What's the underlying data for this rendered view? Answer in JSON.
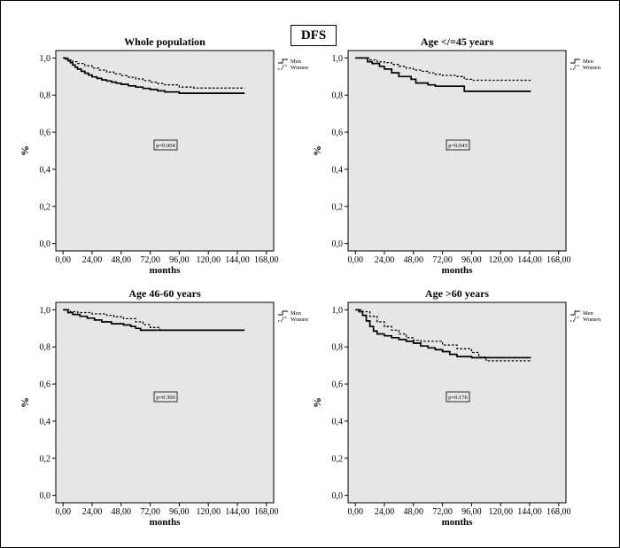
{
  "figure": {
    "title": "DFS"
  },
  "chart_data": [
    {
      "type": "line",
      "title": "Whole population",
      "xlabel": "months",
      "ylabel": "%",
      "xlim": [
        -6,
        174
      ],
      "ylim": [
        -0.04,
        1.04
      ],
      "xticks": [
        "0,00",
        "24,00",
        "48,00",
        "72,00",
        "96,00",
        "120,00",
        "144,00",
        "168,00"
      ],
      "yticks": [
        "0,0",
        "0,2",
        "0,4",
        "0,6",
        "0,8",
        "1,0"
      ],
      "pvalue": "p=0.004",
      "background": "#e6e6e6",
      "legend_position": "top-right",
      "series": [
        {
          "name": "Men",
          "style": "solid",
          "points": [
            [
              0,
              1.0
            ],
            [
              2,
              0.995
            ],
            [
              4,
              0.985
            ],
            [
              6,
              0.975
            ],
            [
              8,
              0.962
            ],
            [
              10,
              0.95
            ],
            [
              12,
              0.94
            ],
            [
              15,
              0.928
            ],
            [
              18,
              0.918
            ],
            [
              21,
              0.908
            ],
            [
              24,
              0.898
            ],
            [
              28,
              0.89
            ],
            [
              32,
              0.882
            ],
            [
              36,
              0.876
            ],
            [
              40,
              0.87
            ],
            [
              44,
              0.864
            ],
            [
              48,
              0.858
            ],
            [
              54,
              0.85
            ],
            [
              60,
              0.843
            ],
            [
              66,
              0.836
            ],
            [
              72,
              0.83
            ],
            [
              78,
              0.823
            ],
            [
              84,
              0.817
            ],
            [
              96,
              0.81
            ],
            [
              150,
              0.81
            ]
          ]
        },
        {
          "name": "Women",
          "style": "dotted",
          "points": [
            [
              0,
              1.0
            ],
            [
              4,
              0.99
            ],
            [
              8,
              0.98
            ],
            [
              12,
              0.97
            ],
            [
              18,
              0.958
            ],
            [
              24,
              0.946
            ],
            [
              30,
              0.935
            ],
            [
              36,
              0.924
            ],
            [
              42,
              0.914
            ],
            [
              48,
              0.905
            ],
            [
              54,
              0.896
            ],
            [
              60,
              0.887
            ],
            [
              66,
              0.878
            ],
            [
              72,
              0.87
            ],
            [
              78,
              0.862
            ],
            [
              84,
              0.855
            ],
            [
              96,
              0.843
            ],
            [
              108,
              0.838
            ],
            [
              150,
              0.838
            ]
          ]
        }
      ]
    },
    {
      "type": "line",
      "title": "Age </=45 years",
      "xlabel": "months",
      "ylabel": "%",
      "xlim": [
        -6,
        174
      ],
      "ylim": [
        -0.04,
        1.04
      ],
      "xticks": [
        "0,00",
        "24,00",
        "48,00",
        "72,00",
        "96,00",
        "120,00",
        "144,00",
        "168,00"
      ],
      "yticks": [
        "0,0",
        "0,2",
        "0,4",
        "0,6",
        "0,8",
        "1,0"
      ],
      "pvalue": "p=0.043",
      "background": "#e6e6e6",
      "legend_position": "top-right",
      "series": [
        {
          "name": "Men",
          "style": "solid",
          "points": [
            [
              0,
              1.0
            ],
            [
              8,
              1.0
            ],
            [
              10,
              0.98
            ],
            [
              14,
              0.97
            ],
            [
              20,
              0.955
            ],
            [
              24,
              0.94
            ],
            [
              30,
              0.92
            ],
            [
              36,
              0.9
            ],
            [
              46,
              0.885
            ],
            [
              50,
              0.865
            ],
            [
              60,
              0.855
            ],
            [
              66,
              0.848
            ],
            [
              90,
              0.848
            ],
            [
              90,
              0.82
            ],
            [
              145,
              0.82
            ]
          ]
        },
        {
          "name": "Women",
          "style": "dotted",
          "points": [
            [
              0,
              1.0
            ],
            [
              12,
              0.99
            ],
            [
              18,
              0.98
            ],
            [
              24,
              0.975
            ],
            [
              30,
              0.965
            ],
            [
              36,
              0.955
            ],
            [
              42,
              0.945
            ],
            [
              48,
              0.935
            ],
            [
              54,
              0.928
            ],
            [
              60,
              0.92
            ],
            [
              66,
              0.912
            ],
            [
              72,
              0.906
            ],
            [
              84,
              0.9
            ],
            [
              90,
              0.885
            ],
            [
              96,
              0.88
            ],
            [
              145,
              0.88
            ]
          ]
        }
      ]
    },
    {
      "type": "line",
      "title": "Age 46-60 years",
      "xlabel": "months",
      "ylabel": "%",
      "xlim": [
        -6,
        174
      ],
      "ylim": [
        -0.04,
        1.04
      ],
      "xticks": [
        "0,00",
        "24,00",
        "48,00",
        "72,00",
        "96,00",
        "120,00",
        "144,00",
        "168,00"
      ],
      "yticks": [
        "0,0",
        "0,2",
        "0,4",
        "0,6",
        "0,8",
        "1,0"
      ],
      "pvalue": "p=0.360",
      "background": "#e6e6e6",
      "legend_position": "top-right",
      "series": [
        {
          "name": "Men",
          "style": "solid",
          "points": [
            [
              0,
              1.0
            ],
            [
              4,
              0.985
            ],
            [
              8,
              0.975
            ],
            [
              14,
              0.965
            ],
            [
              20,
              0.955
            ],
            [
              26,
              0.945
            ],
            [
              32,
              0.935
            ],
            [
              40,
              0.925
            ],
            [
              50,
              0.918
            ],
            [
              56,
              0.91
            ],
            [
              60,
              0.9
            ],
            [
              64,
              0.89
            ],
            [
              150,
              0.89
            ]
          ]
        },
        {
          "name": "Women",
          "style": "dotted",
          "points": [
            [
              0,
              1.0
            ],
            [
              6,
              0.99
            ],
            [
              12,
              0.985
            ],
            [
              24,
              0.978
            ],
            [
              36,
              0.97
            ],
            [
              42,
              0.962
            ],
            [
              50,
              0.952
            ],
            [
              60,
              0.935
            ],
            [
              66,
              0.92
            ],
            [
              72,
              0.905
            ],
            [
              80,
              0.89
            ],
            [
              150,
              0.89
            ]
          ]
        }
      ]
    },
    {
      "type": "line",
      "title": "Age >60 years",
      "xlabel": "months",
      "ylabel": "%",
      "xlim": [
        -6,
        174
      ],
      "ylim": [
        -0.04,
        1.04
      ],
      "xticks": [
        "0,00",
        "24,00",
        "48,00",
        "72,00",
        "96,00",
        "120,00",
        "144,00",
        "168,00"
      ],
      "yticks": [
        "0,0",
        "0,2",
        "0,4",
        "0,6",
        "0,8",
        "1,0"
      ],
      "pvalue": "p=0.176",
      "background": "#e6e6e6",
      "legend_position": "top-right",
      "series": [
        {
          "name": "Men",
          "style": "solid",
          "points": [
            [
              0,
              1.0
            ],
            [
              3,
              0.99
            ],
            [
              6,
              0.97
            ],
            [
              9,
              0.94
            ],
            [
              12,
              0.91
            ],
            [
              15,
              0.885
            ],
            [
              18,
              0.87
            ],
            [
              24,
              0.86
            ],
            [
              30,
              0.85
            ],
            [
              36,
              0.84
            ],
            [
              42,
              0.83
            ],
            [
              48,
              0.82
            ],
            [
              54,
              0.805
            ],
            [
              60,
              0.795
            ],
            [
              66,
              0.785
            ],
            [
              72,
              0.775
            ],
            [
              78,
              0.76
            ],
            [
              84,
              0.748
            ],
            [
              96,
              0.742
            ],
            [
              145,
              0.742
            ]
          ]
        },
        {
          "name": "Women",
          "style": "dotted",
          "points": [
            [
              0,
              1.0
            ],
            [
              6,
              0.99
            ],
            [
              12,
              0.965
            ],
            [
              18,
              0.935
            ],
            [
              24,
              0.91
            ],
            [
              30,
              0.89
            ],
            [
              36,
              0.87
            ],
            [
              42,
              0.85
            ],
            [
              48,
              0.835
            ],
            [
              54,
              0.83
            ],
            [
              60,
              0.83
            ],
            [
              72,
              0.81
            ],
            [
              84,
              0.79
            ],
            [
              96,
              0.77
            ],
            [
              102,
              0.745
            ],
            [
              108,
              0.725
            ],
            [
              145,
              0.72
            ]
          ]
        }
      ]
    }
  ]
}
